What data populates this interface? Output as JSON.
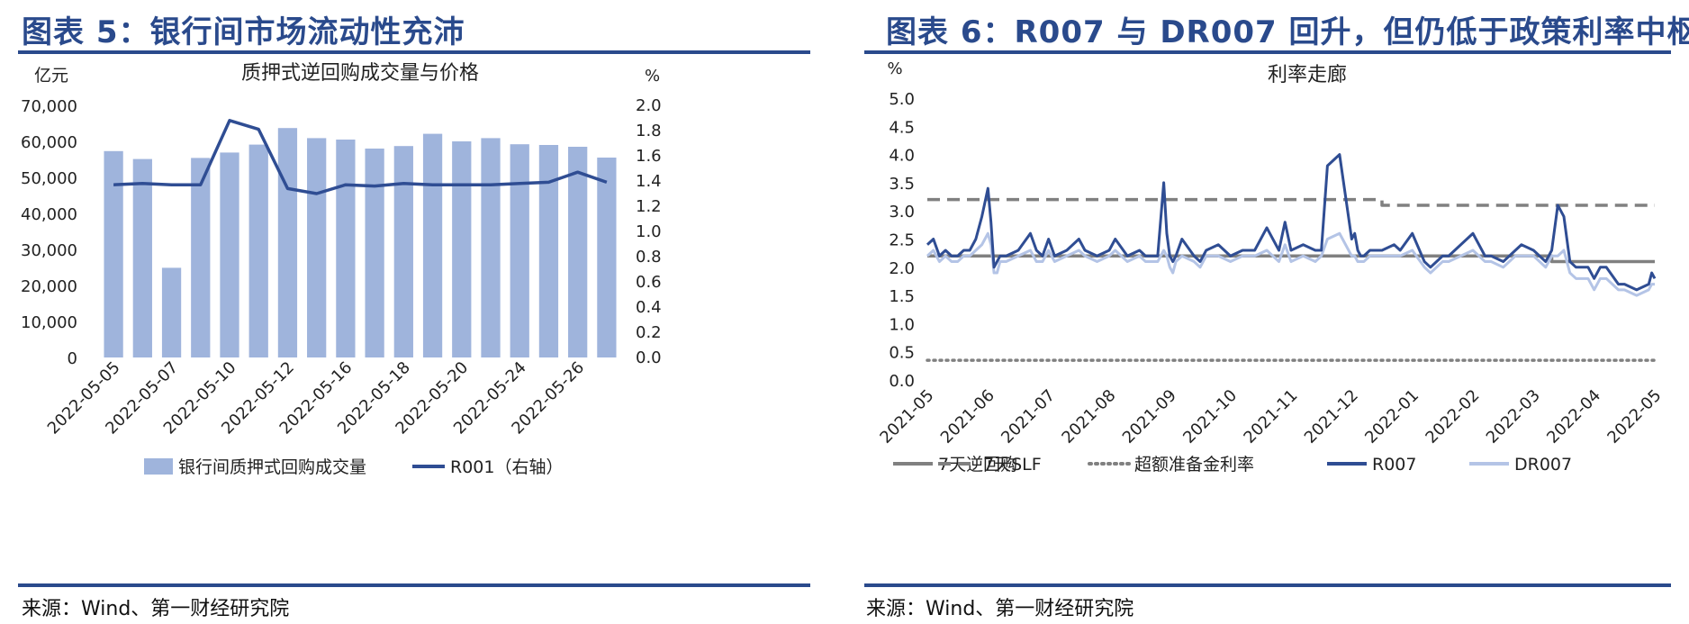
{
  "left": {
    "figure_title": "图表 5：银行间市场流动性充沛",
    "source": "来源：Wind、第一财经研究院",
    "chart_data": {
      "type": "bar",
      "title": "质押式逆回购成交量与价格",
      "left_unit": "亿元",
      "right_unit": "%",
      "ylim": [
        0,
        70000
      ],
      "y2lim": [
        0,
        2.0
      ],
      "yticks": [
        "0",
        "10,000",
        "20,000",
        "30,000",
        "40,000",
        "50,000",
        "60,000",
        "70,000"
      ],
      "y2ticks": [
        "0.0",
        "0.2",
        "0.4",
        "0.6",
        "0.8",
        "1.0",
        "1.2",
        "1.4",
        "1.6",
        "1.8",
        "2.0"
      ],
      "x_tick_labels": [
        "2022-05-05",
        "2022-05-07",
        "2022-05-10",
        "2022-05-12",
        "2022-05-16",
        "2022-05-18",
        "2022-05-20",
        "2022-05-24",
        "2022-05-26"
      ],
      "categories": [
        "2022-05-05",
        "2022-05-06",
        "2022-05-07",
        "2022-05-09",
        "2022-05-10",
        "2022-05-11",
        "2022-05-12",
        "2022-05-13",
        "2022-05-16",
        "2022-05-17",
        "2022-05-18",
        "2022-05-19",
        "2022-05-20",
        "2022-05-23",
        "2022-05-24",
        "2022-05-25",
        "2022-05-26",
        "2022-05-27"
      ],
      "series": [
        {
          "name": "银行间质押式回购成交量",
          "type": "bar",
          "axis": "left",
          "color": "#9fb4dc",
          "values": [
            57300,
            55100,
            24900,
            55400,
            56900,
            59100,
            63700,
            60900,
            60500,
            58000,
            58700,
            62100,
            60000,
            60900,
            59200,
            59000,
            58500,
            55500
          ]
        },
        {
          "name": "R001（右轴）",
          "type": "line",
          "axis": "right",
          "color": "#2f4d93",
          "values": [
            1.37,
            1.38,
            1.37,
            1.37,
            1.88,
            1.81,
            1.34,
            1.3,
            1.37,
            1.36,
            1.38,
            1.37,
            1.37,
            1.37,
            1.38,
            1.39,
            1.47,
            1.39
          ]
        }
      ],
      "legend": [
        "银行间质押式回购成交量",
        "R001（右轴）"
      ]
    }
  },
  "right": {
    "figure_title": "图表 6：R007 与 DR007 回升，但仍低于政策利率中枢",
    "source": "来源：Wind、第一财经研究院",
    "chart_data": {
      "type": "line",
      "title": "利率走廊",
      "y_unit": "%",
      "ylim": [
        0,
        5.0
      ],
      "yticks": [
        "0.0",
        "0.5",
        "1.0",
        "1.5",
        "2.0",
        "2.5",
        "3.0",
        "3.5",
        "4.0",
        "4.5",
        "5.0"
      ],
      "x_tick_labels": [
        "2021-05",
        "2021-06",
        "2021-07",
        "2021-08",
        "2021-09",
        "2021-10",
        "2021-11",
        "2021-12",
        "2022-01",
        "2022-02",
        "2022-03",
        "2022-04",
        "2022-05"
      ],
      "xlim": [
        0,
        12
      ],
      "series": [
        {
          "name": "7天逆回购",
          "style": "solid",
          "color": "#808080",
          "x": [
            0,
            10.3,
            10.3,
            12
          ],
          "y": [
            2.2,
            2.2,
            2.1,
            2.1
          ]
        },
        {
          "name": "7天SLF",
          "style": "dashed",
          "color": "#808080",
          "x": [
            0,
            7.5,
            7.5,
            12
          ],
          "y": [
            3.2,
            3.2,
            3.1,
            3.1
          ]
        },
        {
          "name": "超额准备金利率",
          "style": "dotted",
          "color": "#808080",
          "x": [
            0,
            12
          ],
          "y": [
            0.35,
            0.35
          ]
        },
        {
          "name": "R007",
          "style": "solid",
          "color": "#2f4d93",
          "x": [
            0,
            0.1,
            0.2,
            0.3,
            0.4,
            0.5,
            0.6,
            0.7,
            0.8,
            0.9,
            1.0,
            1.05,
            1.1,
            1.15,
            1.2,
            1.3,
            1.5,
            1.7,
            1.8,
            1.9,
            2.0,
            2.1,
            2.3,
            2.5,
            2.6,
            2.8,
            3.0,
            3.1,
            3.3,
            3.5,
            3.6,
            3.8,
            3.9,
            3.95,
            4.0,
            4.05,
            4.1,
            4.2,
            4.4,
            4.5,
            4.6,
            4.8,
            5.0,
            5.2,
            5.4,
            5.6,
            5.8,
            5.9,
            6.0,
            6.2,
            6.4,
            6.5,
            6.6,
            6.8,
            7.0,
            7.05,
            7.1,
            7.15,
            7.2,
            7.3,
            7.5,
            7.7,
            7.8,
            8.0,
            8.2,
            8.3,
            8.5,
            8.6,
            8.8,
            9.0,
            9.2,
            9.3,
            9.5,
            9.7,
            9.8,
            10.0,
            10.2,
            10.3,
            10.4,
            10.5,
            10.6,
            10.7,
            10.9,
            11.0,
            11.1,
            11.2,
            11.4,
            11.5,
            11.7,
            11.9,
            11.95,
            12.0
          ],
          "y": [
            2.4,
            2.5,
            2.2,
            2.3,
            2.2,
            2.2,
            2.3,
            2.3,
            2.5,
            2.9,
            3.4,
            2.8,
            2.0,
            2.1,
            2.2,
            2.2,
            2.3,
            2.6,
            2.3,
            2.2,
            2.5,
            2.2,
            2.3,
            2.5,
            2.3,
            2.2,
            2.3,
            2.5,
            2.2,
            2.3,
            2.2,
            2.2,
            3.5,
            2.6,
            2.2,
            2.1,
            2.2,
            2.5,
            2.2,
            2.1,
            2.3,
            2.4,
            2.2,
            2.3,
            2.3,
            2.7,
            2.3,
            2.8,
            2.3,
            2.4,
            2.3,
            2.3,
            3.8,
            4.0,
            2.5,
            2.6,
            2.3,
            2.2,
            2.2,
            2.3,
            2.3,
            2.4,
            2.3,
            2.6,
            2.1,
            2.0,
            2.2,
            2.2,
            2.4,
            2.6,
            2.2,
            2.2,
            2.1,
            2.3,
            2.4,
            2.3,
            2.1,
            2.3,
            3.1,
            2.9,
            2.1,
            2.0,
            2.0,
            1.8,
            2.0,
            2.0,
            1.7,
            1.7,
            1.6,
            1.7,
            1.9,
            1.8
          ]
        },
        {
          "name": "DR007",
          "style": "solid",
          "color": "#b4c4e6",
          "x": [
            0,
            0.1,
            0.2,
            0.3,
            0.4,
            0.5,
            0.6,
            0.7,
            0.8,
            0.9,
            1.0,
            1.05,
            1.1,
            1.15,
            1.2,
            1.3,
            1.5,
            1.7,
            1.8,
            1.9,
            2.0,
            2.1,
            2.3,
            2.5,
            2.6,
            2.8,
            3.0,
            3.1,
            3.3,
            3.5,
            3.6,
            3.8,
            3.9,
            3.95,
            4.0,
            4.05,
            4.1,
            4.2,
            4.4,
            4.5,
            4.6,
            4.8,
            5.0,
            5.2,
            5.4,
            5.6,
            5.8,
            5.9,
            6.0,
            6.2,
            6.4,
            6.5,
            6.6,
            6.8,
            7.0,
            7.05,
            7.1,
            7.15,
            7.2,
            7.3,
            7.5,
            7.7,
            7.8,
            8.0,
            8.2,
            8.3,
            8.5,
            8.6,
            8.8,
            9.0,
            9.2,
            9.3,
            9.5,
            9.7,
            9.8,
            10.0,
            10.2,
            10.3,
            10.4,
            10.5,
            10.6,
            10.7,
            10.9,
            11.0,
            11.1,
            11.2,
            11.4,
            11.5,
            11.7,
            11.9,
            11.95,
            12.0
          ],
          "y": [
            2.2,
            2.3,
            2.1,
            2.2,
            2.1,
            2.1,
            2.2,
            2.2,
            2.3,
            2.4,
            2.6,
            2.4,
            1.9,
            1.9,
            2.1,
            2.1,
            2.2,
            2.3,
            2.1,
            2.1,
            2.3,
            2.1,
            2.2,
            2.3,
            2.2,
            2.1,
            2.2,
            2.3,
            2.1,
            2.2,
            2.1,
            2.1,
            2.3,
            2.2,
            2.0,
            1.9,
            2.1,
            2.2,
            2.1,
            2.0,
            2.2,
            2.2,
            2.1,
            2.2,
            2.2,
            2.3,
            2.1,
            2.4,
            2.1,
            2.2,
            2.1,
            2.2,
            2.5,
            2.6,
            2.2,
            2.2,
            2.1,
            2.1,
            2.1,
            2.2,
            2.2,
            2.2,
            2.2,
            2.3,
            2.0,
            1.9,
            2.1,
            2.1,
            2.2,
            2.3,
            2.1,
            2.1,
            2.0,
            2.2,
            2.2,
            2.2,
            2.0,
            2.2,
            2.2,
            2.3,
            1.9,
            1.8,
            1.8,
            1.6,
            1.8,
            1.8,
            1.6,
            1.6,
            1.5,
            1.6,
            1.7,
            1.7
          ]
        }
      ],
      "legend": [
        "7天逆回购",
        "7天SLF",
        "超额准备金利率",
        "R007",
        "DR007"
      ]
    }
  }
}
